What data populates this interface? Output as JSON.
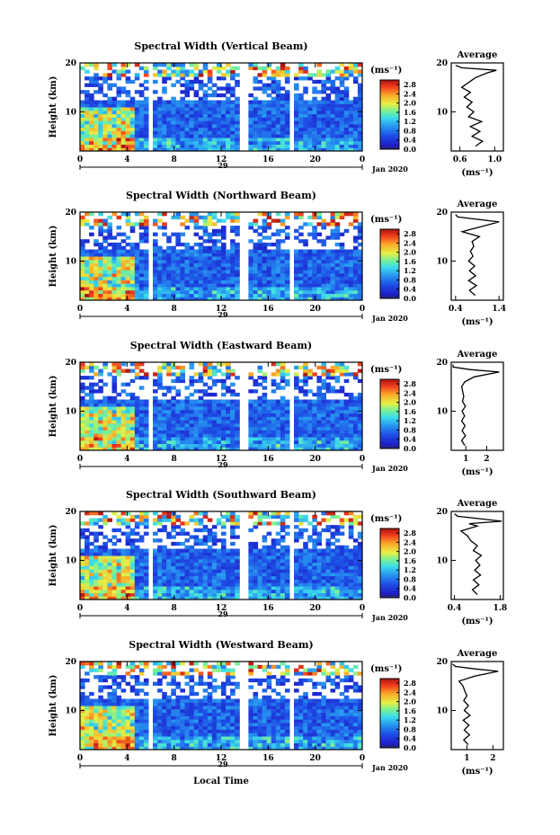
{
  "figure": {
    "x_label": "Local Time",
    "month_label": "Jan 2020",
    "date_label": "29",
    "avg_title": "Average",
    "unit_label": "(ms⁻¹)"
  },
  "chart_data": [
    {
      "type": "heatmap",
      "title": "Spectral Width (Vertical Beam)",
      "ylabel": "Height (km)",
      "xlabel": "",
      "x_ticks": [
        "0",
        "4",
        "8",
        "12",
        "16",
        "20",
        "0"
      ],
      "x_range": [
        0,
        24
      ],
      "y_ticks": [
        "20",
        "10"
      ],
      "y_range": [
        2,
        20
      ],
      "colorbar_ticks": [
        "2.8",
        "2.4",
        "2.0",
        "1.6",
        "1.2",
        "0.8",
        "0.4",
        "0.0"
      ],
      "colorbar_range": [
        0,
        3.0
      ],
      "data_gaps_hours": [
        [
          1.0,
          1.3
        ],
        [
          5.7,
          6.0
        ],
        [
          13.7,
          14.3
        ],
        [
          17.3,
          17.6
        ],
        [
          17.8,
          18.0
        ]
      ],
      "avg_profile": {
        "x_ticks": [
          "0.6",
          "1.0"
        ],
        "xlim": [
          0.5,
          1.1
        ],
        "height": [
          3,
          4,
          5,
          6,
          7,
          8,
          9,
          10,
          11,
          12,
          13,
          14,
          15,
          16,
          17,
          18,
          18.5,
          19,
          19.5
        ],
        "value": [
          0.78,
          0.86,
          0.74,
          0.83,
          0.72,
          0.85,
          0.7,
          0.76,
          0.68,
          0.74,
          0.65,
          0.72,
          0.62,
          0.7,
          0.78,
          0.92,
          1.02,
          0.62,
          0.55
        ]
      }
    },
    {
      "type": "heatmap",
      "title": "Spectral Width (Northward Beam)",
      "ylabel": "Height (km)",
      "xlabel": "",
      "x_ticks": [
        "0",
        "4",
        "8",
        "12",
        "16",
        "20",
        "0"
      ],
      "x_range": [
        0,
        24
      ],
      "y_ticks": [
        "20",
        "10"
      ],
      "y_range": [
        2,
        20
      ],
      "colorbar_ticks": [
        "2.8",
        "2.4",
        "2.0",
        "1.6",
        "1.2",
        "0.8",
        "0.4",
        "0.0"
      ],
      "colorbar_range": [
        0,
        3.0
      ],
      "data_gaps_hours": [
        [
          1.0,
          1.3
        ],
        [
          5.7,
          6.0
        ],
        [
          13.7,
          14.3
        ],
        [
          17.3,
          17.6
        ],
        [
          17.8,
          18.0
        ]
      ],
      "avg_profile": {
        "x_ticks": [
          "0.4",
          "1.4"
        ],
        "xlim": [
          0.3,
          1.5
        ],
        "height": [
          3,
          4,
          5,
          6,
          7,
          8,
          9,
          10,
          11,
          12,
          13,
          14,
          15,
          16,
          16.5,
          17,
          18,
          19,
          19.5
        ],
        "value": [
          0.85,
          0.72,
          0.88,
          0.7,
          0.86,
          0.72,
          0.84,
          0.7,
          0.8,
          0.74,
          0.82,
          0.78,
          0.95,
          0.55,
          0.75,
          0.98,
          1.4,
          0.45,
          0.4
        ]
      }
    },
    {
      "type": "heatmap",
      "title": "Spectral Width (Eastward Beam)",
      "ylabel": "Height (km)",
      "xlabel": "",
      "x_ticks": [
        "0",
        "4",
        "8",
        "12",
        "16",
        "20",
        "0"
      ],
      "x_range": [
        0,
        24
      ],
      "y_ticks": [
        "20",
        "10"
      ],
      "y_range": [
        2,
        20
      ],
      "colorbar_ticks": [
        "2.8",
        "2.4",
        "2.0",
        "1.6",
        "1.2",
        "0.8",
        "0.4",
        "0.0"
      ],
      "colorbar_range": [
        0,
        3.0
      ],
      "data_gaps_hours": [
        [
          1.0,
          1.3
        ],
        [
          5.7,
          6.0
        ],
        [
          13.7,
          14.3
        ],
        [
          17.3,
          17.6
        ],
        [
          17.8,
          18.0
        ]
      ],
      "avg_profile": {
        "x_ticks": [
          "1",
          "2"
        ],
        "xlim": [
          0.3,
          2.8
        ],
        "height": [
          3,
          4,
          5,
          6,
          7,
          8,
          9,
          10,
          11,
          12,
          13,
          14,
          15,
          16,
          17,
          18,
          18.5,
          19,
          19.5
        ],
        "value": [
          0.95,
          0.8,
          0.98,
          0.82,
          0.96,
          0.8,
          0.94,
          0.82,
          0.98,
          0.84,
          0.9,
          0.85,
          0.8,
          0.95,
          1.4,
          2.6,
          1.2,
          0.4,
          0.38
        ]
      }
    },
    {
      "type": "heatmap",
      "title": "Spectral Width (Southward Beam)",
      "ylabel": "Height (km)",
      "xlabel": "",
      "x_ticks": [
        "0",
        "4",
        "8",
        "12",
        "16",
        "20",
        "0"
      ],
      "x_range": [
        0,
        24
      ],
      "y_ticks": [
        "20",
        "10"
      ],
      "y_range": [
        2,
        20
      ],
      "colorbar_ticks": [
        "2.8",
        "2.4",
        "2.0",
        "1.6",
        "1.2",
        "0.8",
        "0.4",
        "0.0"
      ],
      "colorbar_range": [
        0,
        3.0
      ],
      "data_gaps_hours": [
        [
          1.0,
          1.3
        ],
        [
          5.7,
          6.0
        ],
        [
          13.7,
          14.3
        ],
        [
          17.3,
          17.6
        ],
        [
          17.8,
          18.0
        ]
      ],
      "avg_profile": {
        "x_ticks": [
          "0.4",
          "1.8"
        ],
        "xlim": [
          0.3,
          1.9
        ],
        "height": [
          3,
          4,
          5,
          6,
          7,
          8,
          9,
          10,
          11,
          12,
          13,
          14,
          15,
          16,
          17,
          17.5,
          18,
          19,
          19.5
        ],
        "value": [
          1.1,
          0.95,
          1.15,
          0.98,
          1.2,
          1.02,
          1.18,
          1.05,
          1.22,
          0.98,
          1.1,
          0.9,
          0.8,
          0.6,
          1.1,
          0.85,
          1.85,
          0.5,
          0.4
        ]
      }
    },
    {
      "type": "heatmap",
      "title": "Spectral Width (Westward Beam)",
      "ylabel": "Height (km)",
      "xlabel": "Local Time",
      "x_ticks": [
        "0",
        "4",
        "8",
        "12",
        "16",
        "20",
        "0"
      ],
      "x_range": [
        0,
        24
      ],
      "y_ticks": [
        "20",
        "10"
      ],
      "y_range": [
        2,
        20
      ],
      "colorbar_ticks": [
        "2.8",
        "2.4",
        "2.0",
        "1.6",
        "1.2",
        "0.8",
        "0.4",
        "0.0"
      ],
      "colorbar_range": [
        0,
        3.0
      ],
      "data_gaps_hours": [
        [
          1.0,
          1.3
        ],
        [
          5.7,
          6.0
        ],
        [
          13.7,
          14.3
        ],
        [
          17.3,
          17.6
        ],
        [
          17.8,
          18.0
        ]
      ],
      "avg_profile": {
        "x_ticks": [
          "1",
          "2"
        ],
        "xlim": [
          0.4,
          2.4
        ],
        "height": [
          3,
          4,
          5,
          6,
          7,
          8,
          9,
          10,
          11,
          12,
          13,
          14,
          15,
          16,
          17,
          18,
          18.5,
          19,
          19.5
        ],
        "value": [
          1.05,
          0.88,
          1.1,
          0.9,
          1.08,
          0.86,
          1.12,
          0.9,
          1.06,
          0.88,
          1.0,
          0.92,
          0.85,
          0.7,
          1.3,
          2.2,
          1.3,
          0.55,
          0.45
        ]
      }
    }
  ]
}
